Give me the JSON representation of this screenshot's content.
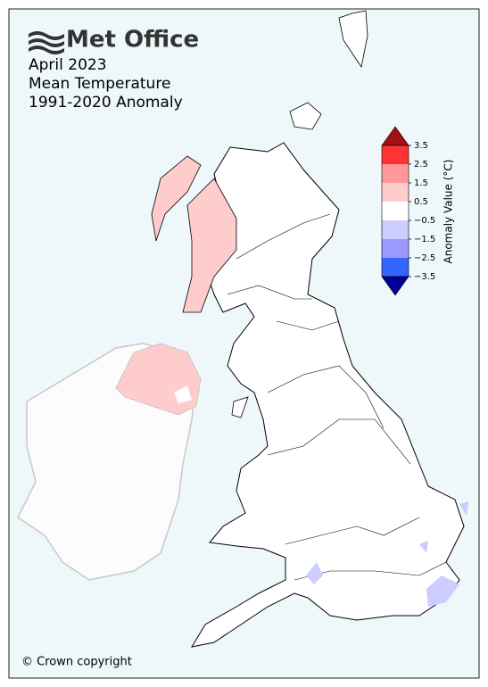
{
  "logo": "Met Office",
  "title": [
    "April 2023",
    "Mean Temperature",
    "1991-2020 Anomaly"
  ],
  "colorbar": {
    "label": "Anomaly Value (°C)",
    "ticks": [
      3.5,
      2.5,
      1.5,
      0.5,
      {
        "value": -0.5,
        "label": "−0.5"
      },
      {
        "value": -1.5,
        "label": "−1.5"
      },
      {
        "value": -2.5,
        "label": "−2.5"
      },
      {
        "value": -3.5,
        "label": "−3.5"
      }
    ],
    "colors": [
      "#a50f15",
      "#ff3333",
      "#ff9999",
      "#ffcccc",
      "#ffffff",
      "#ccccff",
      "#9999ff",
      "#3366ff",
      "#000099"
    ]
  },
  "copyright": "© Crown copyright"
}
